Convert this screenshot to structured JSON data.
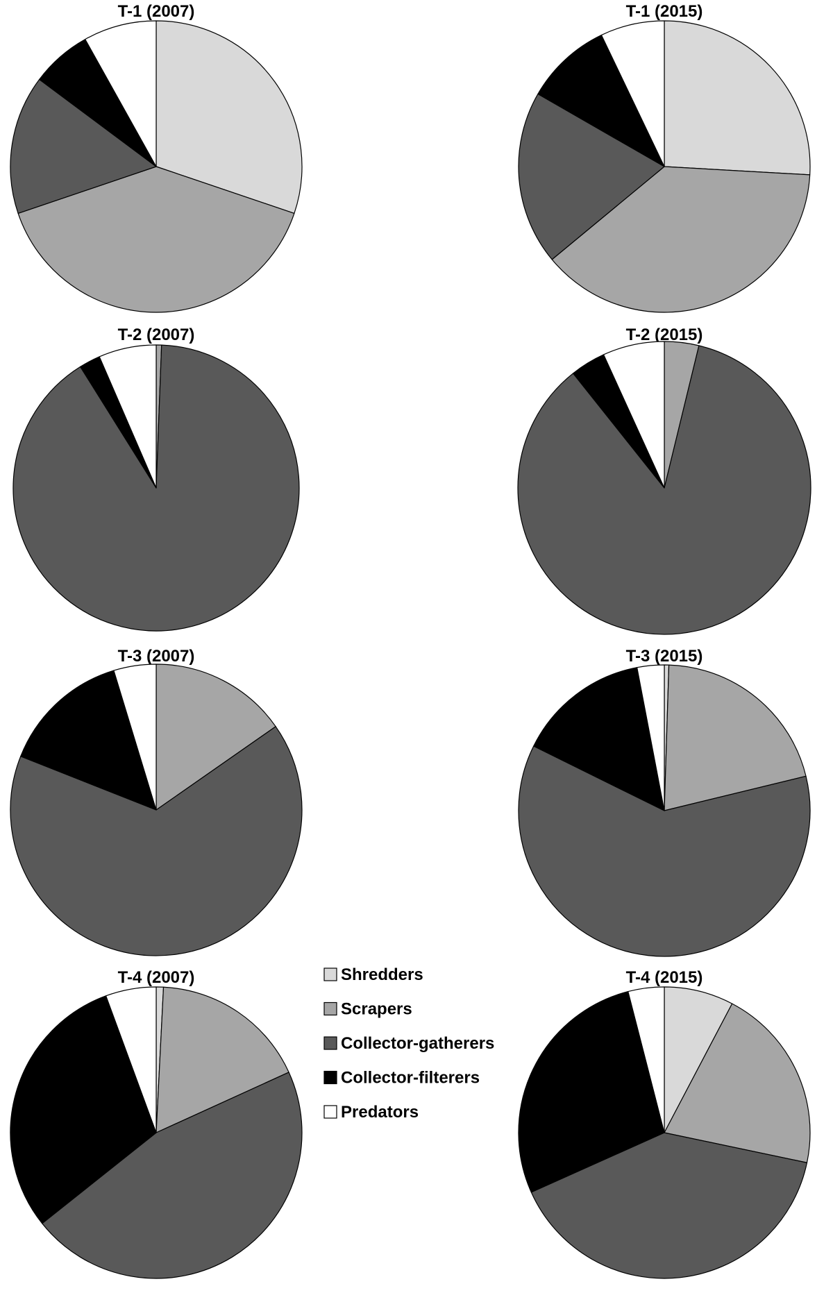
{
  "legend": [
    {
      "label": "Shredders",
      "color": "#d9d9d9"
    },
    {
      "label": "Scrapers",
      "color": "#a6a6a6"
    },
    {
      "label": "Collector-gatherers",
      "color": "#595959"
    },
    {
      "label": "Collector-filterers",
      "color": "#000000"
    },
    {
      "label": "Predators",
      "color": "#ffffff"
    }
  ],
  "chart_data": [
    {
      "type": "pie",
      "title": "T-1 (2007)",
      "labels": [
        "Shredders",
        "Scrapers",
        "Collector-gatherers",
        "Collector-filterers",
        "Predators"
      ],
      "values": [
        30.2,
        39.6,
        15.4,
        6.7,
        8.1
      ]
    },
    {
      "type": "pie",
      "title": "T-1 (2015)",
      "labels": [
        "Shredders",
        "Scrapers",
        "Collector-gatherers",
        "Collector-filterers",
        "Predators"
      ],
      "values": [
        25.9,
        38.1,
        19.3,
        9.6,
        7.1
      ]
    },
    {
      "type": "pie",
      "title": "T-2 (2007)",
      "labels": [
        "Shredders",
        "Scrapers",
        "Collector-gatherers",
        "Collector-filterers",
        "Predators"
      ],
      "values": [
        0.0,
        0.6,
        90.5,
        2.4,
        6.5
      ]
    },
    {
      "type": "pie",
      "title": "T-2 (2015)",
      "labels": [
        "Shredders",
        "Scrapers",
        "Collector-gatherers",
        "Collector-filterers",
        "Predators"
      ],
      "values": [
        0.0,
        3.8,
        85.5,
        3.9,
        6.8
      ]
    },
    {
      "type": "pie",
      "title": "T-3 (2007)",
      "labels": [
        "Shredders",
        "Scrapers",
        "Collector-gatherers",
        "Collector-filterers",
        "Predators"
      ],
      "values": [
        0.0,
        15.3,
        65.7,
        14.3,
        4.7
      ]
    },
    {
      "type": "pie",
      "title": "T-3 (2015)",
      "labels": [
        "Shredders",
        "Scrapers",
        "Collector-gatherers",
        "Collector-filterers",
        "Predators"
      ],
      "values": [
        0.5,
        20.7,
        61.1,
        14.7,
        3.0
      ]
    },
    {
      "type": "pie",
      "title": "T-4 (2007)",
      "labels": [
        "Shredders",
        "Scrapers",
        "Collector-gatherers",
        "Collector-filterers",
        "Predators"
      ],
      "values": [
        0.8,
        17.4,
        46.1,
        30.1,
        5.6
      ]
    },
    {
      "type": "pie",
      "title": "T-4 (2015)",
      "labels": [
        "Shredders",
        "Scrapers",
        "Collector-gatherers",
        "Collector-filterers",
        "Predators"
      ],
      "values": [
        7.7,
        20.6,
        40.0,
        27.7,
        4.0
      ]
    }
  ]
}
